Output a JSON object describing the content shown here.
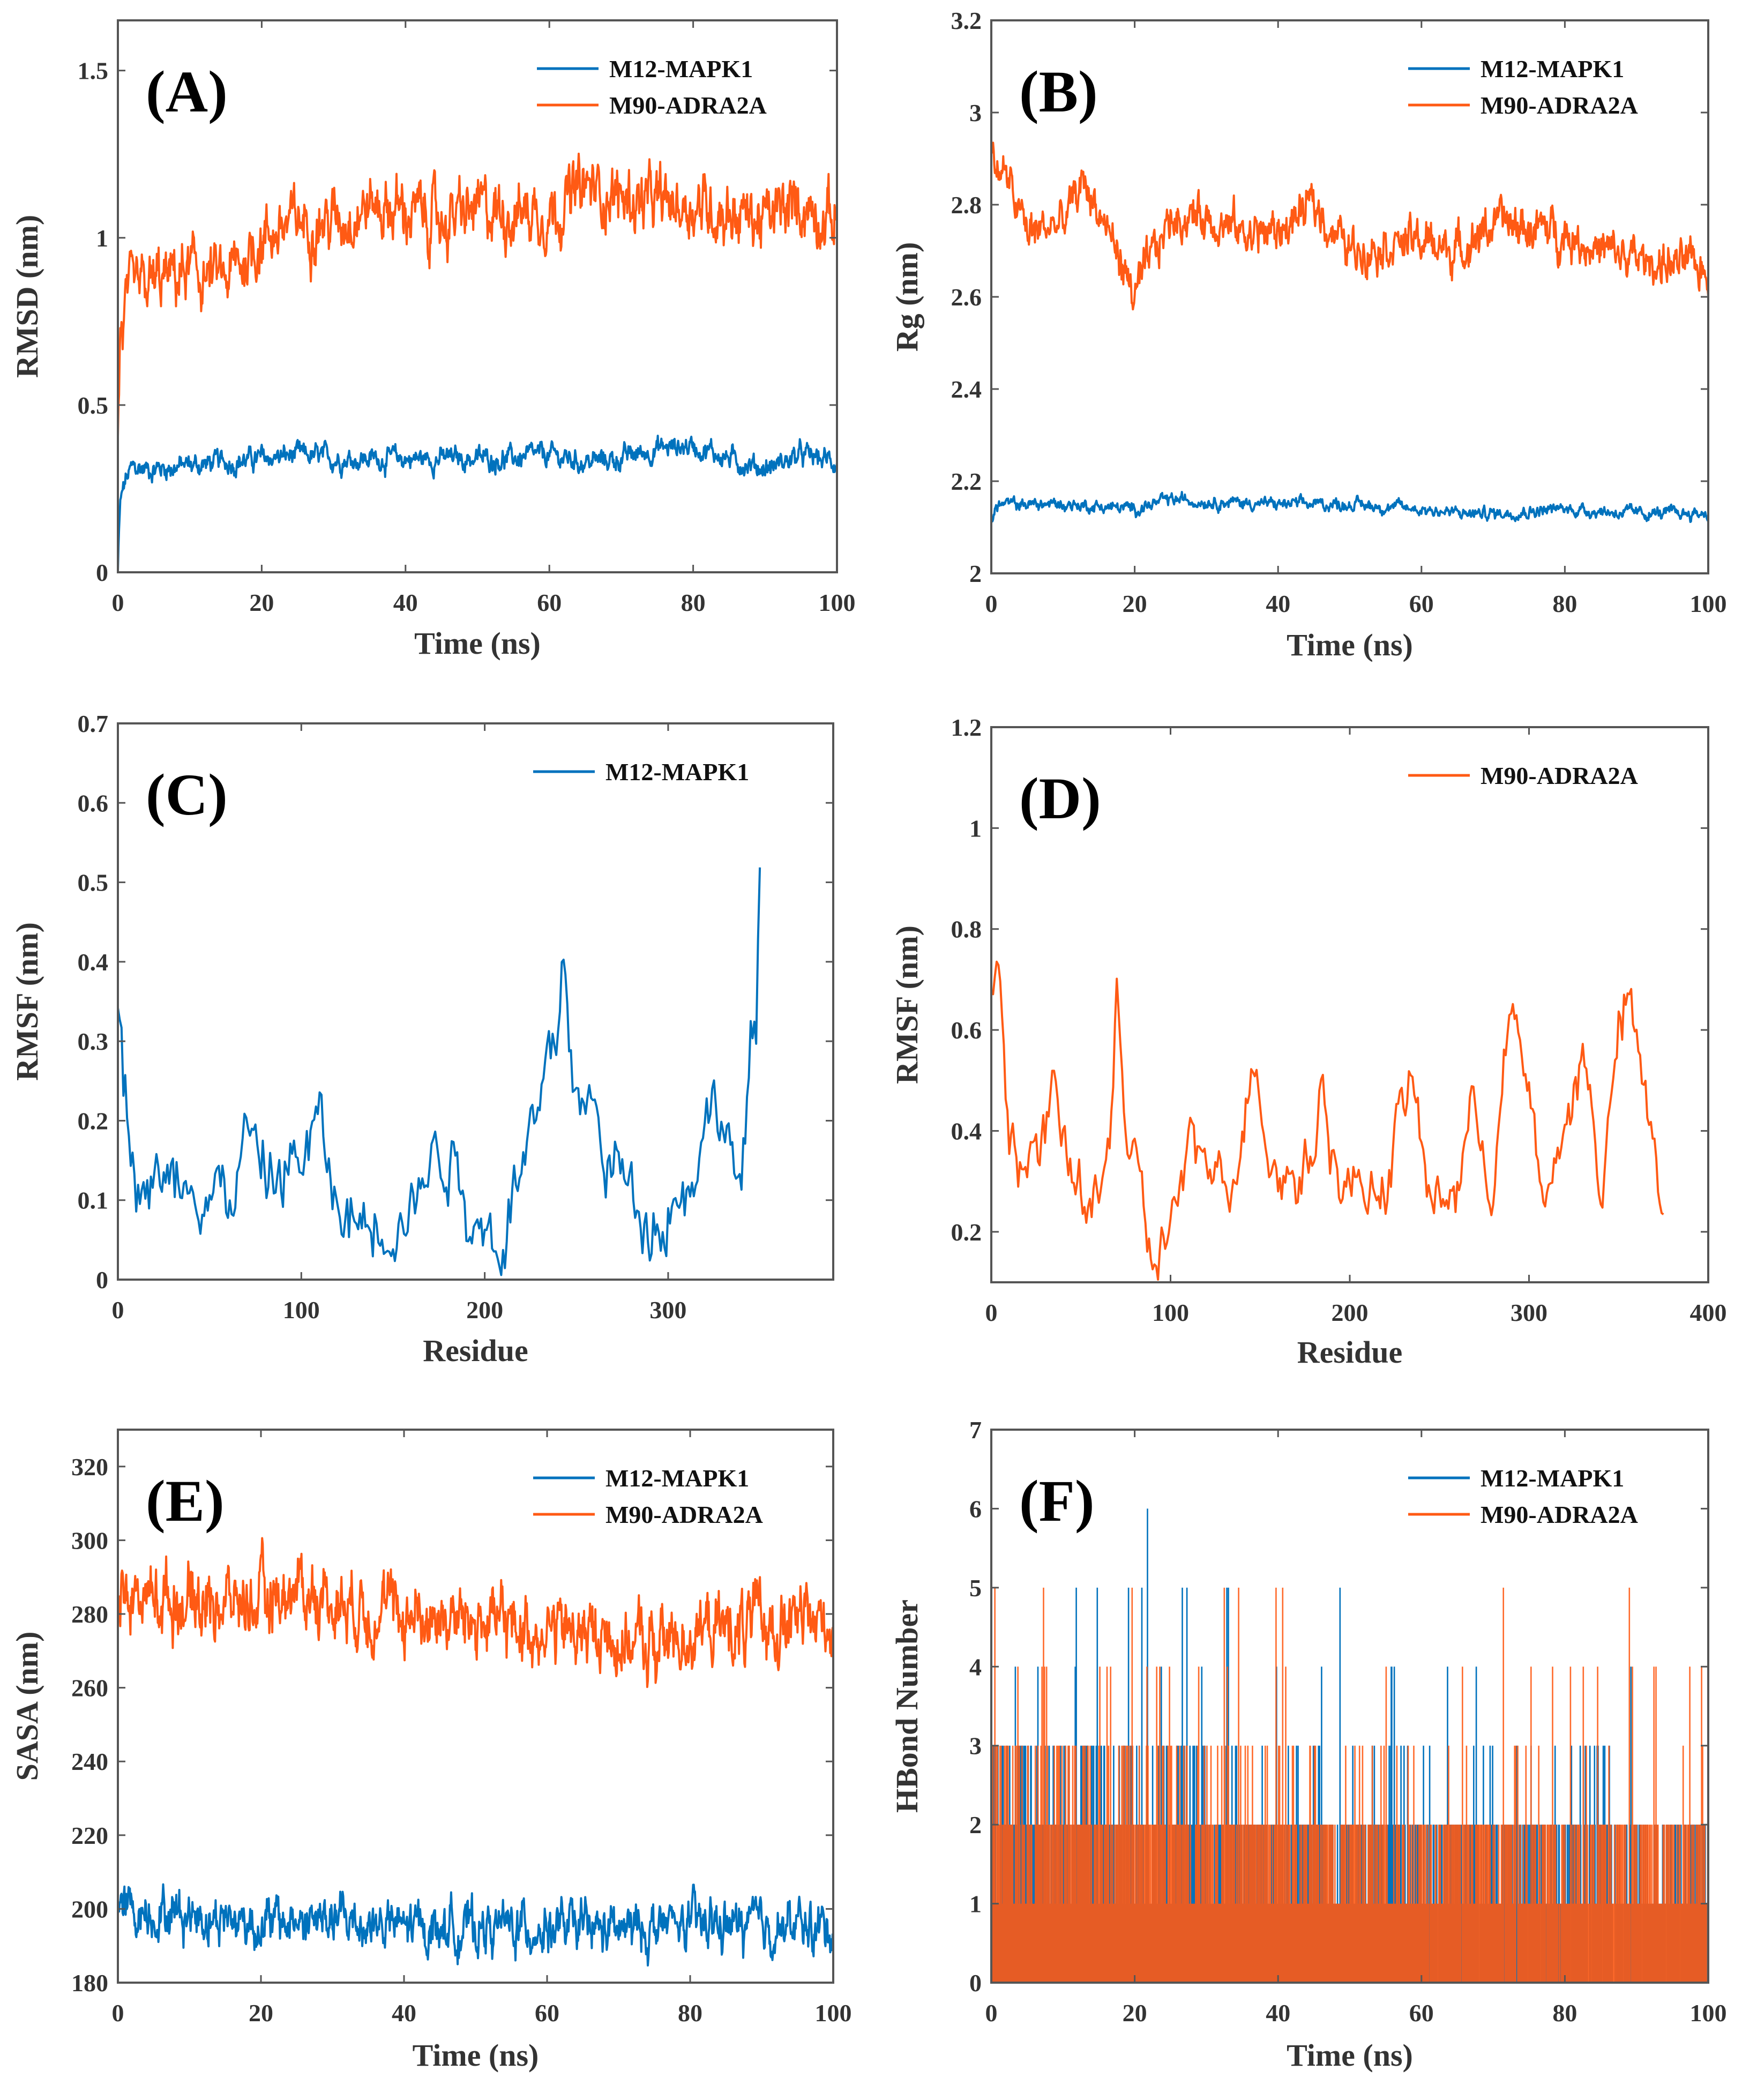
{
  "colors": {
    "blue": "#0072BD",
    "orange": "#FF5A14",
    "axis": "#555555"
  },
  "chart_data": [
    {
      "id": "A",
      "type": "line",
      "panel_label": "(A)",
      "xlabel": "Time (ns)",
      "ylabel": "RMSD (nm)",
      "xlim": [
        0,
        100
      ],
      "ylim": [
        0,
        1.65
      ],
      "xticks": [
        0,
        20,
        40,
        60,
        80,
        100
      ],
      "xtick_labels": [
        "0",
        "20",
        "40",
        "60",
        "80",
        "100"
      ],
      "yticks": [
        0,
        0.5,
        1,
        1.5
      ],
      "ytick_labels": [
        "0",
        "0.5",
        "1",
        "1.5"
      ],
      "legend": "top-right",
      "series": [
        {
          "name": "M12-MAPK1",
          "color": "#0072BD",
          "noise": 0.025,
          "x": [
            0,
            0.3,
            1,
            2,
            5,
            10,
            15,
            20,
            25,
            30,
            35,
            40,
            45,
            50,
            55,
            60,
            65,
            70,
            75,
            80,
            85,
            90,
            95,
            100
          ],
          "y": [
            0,
            0.2,
            0.27,
            0.31,
            0.31,
            0.32,
            0.33,
            0.34,
            0.35,
            0.34,
            0.34,
            0.34,
            0.34,
            0.34,
            0.34,
            0.35,
            0.33,
            0.34,
            0.37,
            0.38,
            0.34,
            0.31,
            0.35,
            0.33
          ]
        },
        {
          "name": "M90-ADRA2A",
          "color": "#FF5A14",
          "noise": 0.07,
          "x": [
            0,
            0.3,
            1,
            2,
            5,
            10,
            15,
            20,
            25,
            30,
            35,
            40,
            45,
            50,
            55,
            60,
            65,
            70,
            75,
            80,
            85,
            90,
            95,
            100
          ],
          "y": [
            0.42,
            0.7,
            0.78,
            0.82,
            0.86,
            0.9,
            0.87,
            1.0,
            1.05,
            1.05,
            1.1,
            1.08,
            1.05,
            1.08,
            1.08,
            1.08,
            1.15,
            1.12,
            1.1,
            1.1,
            1.08,
            1.05,
            1.1,
            1.05
          ]
        }
      ]
    },
    {
      "id": "B",
      "type": "line",
      "panel_label": "(B)",
      "xlabel": "Time  (ns)",
      "ylabel": "Rg (nm)",
      "xlim": [
        0,
        100
      ],
      "ylim": [
        2,
        3.2
      ],
      "xticks": [
        0,
        20,
        40,
        60,
        80,
        100
      ],
      "xtick_labels": [
        "0",
        "20",
        "40",
        "60",
        "80",
        "100"
      ],
      "yticks": [
        2,
        2.2,
        2.4,
        2.6,
        2.8,
        3,
        3.2
      ],
      "ytick_labels": [
        "2",
        "2.2",
        "2.4",
        "2.6",
        "2.8",
        "3",
        "3.2"
      ],
      "legend": "top-right",
      "series": [
        {
          "name": "M12-MAPK1",
          "color": "#0072BD",
          "noise": 0.01,
          "x": [
            0,
            1,
            10,
            20,
            25,
            40,
            50,
            60,
            65,
            70,
            80,
            90,
            100
          ],
          "y": [
            2.12,
            2.15,
            2.15,
            2.14,
            2.16,
            2.15,
            2.15,
            2.14,
            2.13,
            2.13,
            2.14,
            2.13,
            2.13
          ]
        },
        {
          "name": "M90-ADRA2A",
          "color": "#FF5A14",
          "noise": 0.035,
          "x": [
            0,
            2,
            5,
            10,
            13,
            17,
            20,
            25,
            30,
            35,
            40,
            45,
            50,
            55,
            60,
            65,
            70,
            75,
            80,
            85,
            90,
            95,
            100
          ],
          "y": [
            2.9,
            2.86,
            2.74,
            2.76,
            2.85,
            2.72,
            2.6,
            2.77,
            2.78,
            2.74,
            2.74,
            2.8,
            2.7,
            2.72,
            2.72,
            2.7,
            2.76,
            2.75,
            2.74,
            2.7,
            2.68,
            2.67,
            2.66
          ]
        }
      ]
    },
    {
      "id": "C",
      "type": "line",
      "panel_label": "(C)",
      "xlabel": "Residue",
      "ylabel": "RMSF (nm)",
      "xlim": [
        0,
        390
      ],
      "ylim": [
        0,
        0.7
      ],
      "xticks": [
        0,
        100,
        200,
        300
      ],
      "xtick_labels": [
        "0",
        "100",
        "200",
        "300"
      ],
      "yticks": [
        0,
        0.1,
        0.2,
        0.3,
        0.4,
        0.5,
        0.6,
        0.7
      ],
      "ytick_labels": [
        "0",
        "0.1",
        "0.2",
        "0.3",
        "0.4",
        "0.5",
        "0.6",
        "0.7"
      ],
      "legend": "top-right",
      "series": [
        {
          "name": "M12-MAPK1",
          "color": "#0072BD",
          "noise": 0.04,
          "x": [
            0,
            5,
            10,
            20,
            30,
            40,
            50,
            60,
            70,
            80,
            90,
            100,
            110,
            120,
            130,
            140,
            150,
            160,
            170,
            180,
            190,
            200,
            205,
            210,
            220,
            230,
            240,
            243,
            250,
            260,
            270,
            280,
            290,
            300,
            310,
            320,
            330,
            340,
            345,
            348,
            350
          ],
          "y": [
            0.35,
            0.2,
            0.15,
            0.12,
            0.12,
            0.15,
            0.12,
            0.1,
            0.18,
            0.12,
            0.14,
            0.15,
            0.19,
            0.08,
            0.07,
            0.08,
            0.1,
            0.09,
            0.15,
            0.18,
            0.1,
            0.07,
            0.05,
            0.07,
            0.15,
            0.2,
            0.3,
            0.42,
            0.22,
            0.2,
            0.15,
            0.1,
            0.09,
            0.1,
            0.12,
            0.2,
            0.22,
            0.1,
            0.25,
            0.32,
            0.52
          ]
        }
      ]
    },
    {
      "id": "D",
      "type": "line",
      "panel_label": "(D)",
      "xlabel": "Residue",
      "ylabel": "RMSF (nm)",
      "xlim": [
        0,
        400
      ],
      "ylim": [
        0.1,
        1.2
      ],
      "xticks": [
        0,
        100,
        200,
        300,
        400
      ],
      "xtick_labels": [
        "0",
        "100",
        "200",
        "300",
        "400"
      ],
      "yticks": [
        0.2,
        0.4,
        0.6,
        0.8,
        1,
        1.2
      ],
      "ytick_labels": [
        "0.2",
        "0.4",
        "0.6",
        "0.8",
        "1",
        "1.2"
      ],
      "legend": "top-right",
      "series": [
        {
          "name": "M90-ADRA2A",
          "color": "#FF5A14",
          "noise": 0.05,
          "x": [
            0,
            4,
            10,
            20,
            30,
            35,
            40,
            50,
            60,
            66,
            70,
            75,
            80,
            90,
            100,
            110,
            120,
            130,
            140,
            148,
            155,
            170,
            180,
            185,
            195,
            210,
            220,
            230,
            235,
            245,
            260,
            270,
            280,
            290,
            300,
            310,
            320,
            330,
            340,
            350,
            355,
            365,
            375
          ],
          "y": [
            0.65,
            0.72,
            0.42,
            0.33,
            0.38,
            0.48,
            0.35,
            0.28,
            0.25,
            0.35,
            0.72,
            0.4,
            0.3,
            0.13,
            0.22,
            0.33,
            0.35,
            0.3,
            0.4,
            0.58,
            0.35,
            0.3,
            0.38,
            0.5,
            0.28,
            0.3,
            0.3,
            0.45,
            0.5,
            0.25,
            0.3,
            0.45,
            0.3,
            0.63,
            0.45,
            0.25,
            0.42,
            0.55,
            0.3,
            0.58,
            0.65,
            0.45,
            0.25
          ]
        }
      ]
    },
    {
      "id": "E",
      "type": "line",
      "panel_label": "(E)",
      "xlabel": "Time (ns)",
      "ylabel": "SASA (nm)",
      "xlim": [
        0,
        100
      ],
      "ylim": [
        180,
        330
      ],
      "xticks": [
        0,
        20,
        40,
        60,
        80,
        100
      ],
      "xtick_labels": [
        "0",
        "20",
        "40",
        "60",
        "80",
        "100"
      ],
      "yticks": [
        180,
        200,
        220,
        240,
        260,
        280,
        300,
        320
      ],
      "ytick_labels": [
        "180",
        "200",
        "220",
        "240",
        "260",
        "280",
        "300",
        "320"
      ],
      "legend": "top-right",
      "series": [
        {
          "name": "M12-MAPK1",
          "color": "#0072BD",
          "noise": 5,
          "x": [
            0,
            10,
            20,
            30,
            40,
            50,
            60,
            70,
            80,
            90,
            100
          ],
          "y": [
            200,
            199,
            196,
            197,
            195,
            195,
            195,
            194,
            196,
            195,
            195
          ]
        },
        {
          "name": "M90-ADRA2A",
          "color": "#FF5A14",
          "noise": 7,
          "x": [
            0,
            10,
            20,
            25,
            30,
            40,
            50,
            60,
            70,
            75,
            80,
            90,
            100
          ],
          "y": [
            285,
            284,
            283,
            287,
            284,
            280,
            278,
            276,
            273,
            271,
            275,
            277,
            278
          ]
        }
      ]
    },
    {
      "id": "F",
      "type": "line",
      "panel_label": "(F)",
      "xlabel": "Time (ns)",
      "ylabel": "HBond Number",
      "xlim": [
        0,
        100
      ],
      "ylim": [
        0,
        7
      ],
      "xticks": [
        0,
        20,
        40,
        60,
        80,
        100
      ],
      "xtick_labels": [
        "0",
        "20",
        "40",
        "60",
        "80",
        "100"
      ],
      "yticks": [
        0,
        1,
        2,
        3,
        4,
        5,
        6,
        7
      ],
      "ytick_labels": [
        "0",
        "1",
        "2",
        "3",
        "4",
        "5",
        "6",
        "7"
      ],
      "legend": "top-right",
      "series": [
        {
          "name": "M12-MAPK1",
          "color": "#0072BD",
          "integer": true,
          "max": 7,
          "x": [
            0,
            20,
            40,
            60,
            70,
            80,
            100
          ],
          "mean": [
            1.8,
            1.8,
            1.5,
            1.5,
            1.2,
            1.1,
            1.1
          ]
        },
        {
          "name": "M90-ADRA2A",
          "color": "#FF5A14",
          "integer": true,
          "max": 7,
          "x": [
            0,
            20,
            40,
            60,
            70,
            80,
            100
          ],
          "mean": [
            1.8,
            1.7,
            1.5,
            1.5,
            1.3,
            1.2,
            1.4
          ]
        }
      ]
    }
  ]
}
